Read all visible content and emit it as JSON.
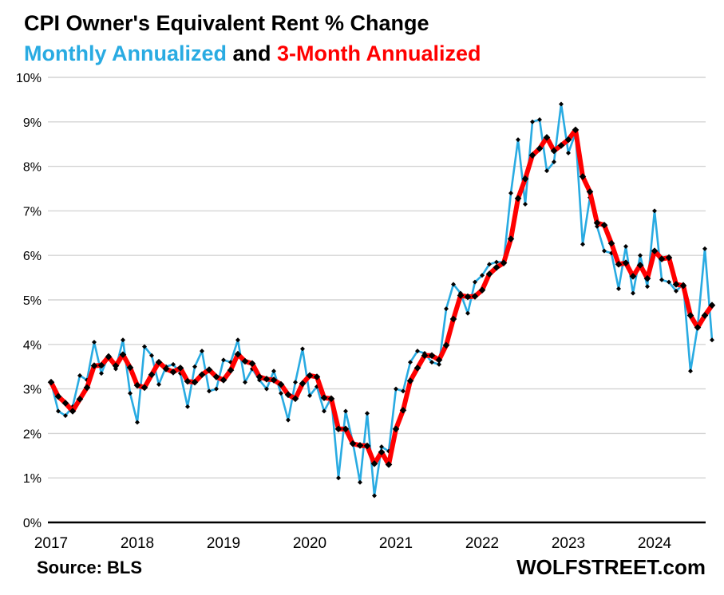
{
  "header": {
    "title": "CPI Owner's Equivalent Rent % Change",
    "subtitle_part1": "Monthly Annualized",
    "subtitle_conj": " and ",
    "subtitle_part2": "3-Month Annualized"
  },
  "footer": {
    "source": "Source: BLS",
    "branding": "WOLFSTREET.com"
  },
  "colors": {
    "monthly_blue": "#29abe2",
    "three_month_red": "#ff0000",
    "marker_black": "#000000",
    "gridline_gray": "#d4d4d4",
    "axis_black": "#000000",
    "text_black": "#000000"
  },
  "chart_data": {
    "type": "line",
    "title": "CPI Owner's Equivalent Rent % Change",
    "frequency": "monthly",
    "x_range_years": [
      "2017",
      "2024"
    ],
    "x_tick_labels": [
      "2017",
      "2018",
      "2019",
      "2020",
      "2021",
      "2022",
      "2023",
      "2024"
    ],
    "y_tick_labels": [
      "0%",
      "1%",
      "2%",
      "3%",
      "4%",
      "5%",
      "6%",
      "7%",
      "8%",
      "9%",
      "10%"
    ],
    "ylim": [
      0,
      10
    ],
    "grid": "horizontal",
    "legend_position": "subtitle",
    "series": [
      {
        "name": "Monthly Annualized",
        "color": "#29abe2",
        "values": [
          3.15,
          2.5,
          2.4,
          2.6,
          3.3,
          3.2,
          4.05,
          3.35,
          3.75,
          3.45,
          4.1,
          2.9,
          2.25,
          3.95,
          3.75,
          3.1,
          3.5,
          3.55,
          3.35,
          2.6,
          3.5,
          3.85,
          2.95,
          3.0,
          3.65,
          3.6,
          4.1,
          3.15,
          3.45,
          3.2,
          3.0,
          3.4,
          2.9,
          2.3,
          3.15,
          3.9,
          2.85,
          3.05,
          2.5,
          2.8,
          1.0,
          2.5,
          1.8,
          0.9,
          2.45,
          0.6,
          1.7,
          1.6,
          3.0,
          2.95,
          3.6,
          3.85,
          3.8,
          3.6,
          3.55,
          4.8,
          5.35,
          5.15,
          4.7,
          5.4,
          5.55,
          5.8,
          5.85,
          5.85,
          7.4,
          8.6,
          7.15,
          9.0,
          9.05,
          7.9,
          8.1,
          9.4,
          8.3,
          8.75,
          6.25,
          7.3,
          6.65,
          6.1,
          6.05,
          5.25,
          6.2,
          5.15,
          6.0,
          5.3,
          7.0,
          5.45,
          5.4,
          5.2,
          5.35,
          3.4,
          4.4,
          6.15,
          4.1
        ]
      },
      {
        "name": "3-Month Annualized",
        "color": "#ff0000",
        "values": [
          3.15,
          2.83,
          2.68,
          2.5,
          2.77,
          3.03,
          3.52,
          3.53,
          3.72,
          3.52,
          3.77,
          3.48,
          3.08,
          3.03,
          3.32,
          3.6,
          3.45,
          3.38,
          3.47,
          3.17,
          3.15,
          3.32,
          3.43,
          3.27,
          3.2,
          3.42,
          3.78,
          3.62,
          3.57,
          3.27,
          3.22,
          3.2,
          3.1,
          2.87,
          2.78,
          3.12,
          3.3,
          3.27,
          2.8,
          2.78,
          2.1,
          2.1,
          1.77,
          1.73,
          1.72,
          1.32,
          1.58,
          1.3,
          2.1,
          2.52,
          3.18,
          3.47,
          3.75,
          3.75,
          3.65,
          3.98,
          4.57,
          5.1,
          5.07,
          5.08,
          5.22,
          5.58,
          5.73,
          5.83,
          6.37,
          7.28,
          7.72,
          8.25,
          8.4,
          8.65,
          8.35,
          8.47,
          8.6,
          8.82,
          7.77,
          7.43,
          6.73,
          6.68,
          6.27,
          5.8,
          5.83,
          5.53,
          5.78,
          5.48,
          6.1,
          5.92,
          5.95,
          5.35,
          5.32,
          4.65,
          4.38,
          4.65,
          4.88
        ]
      }
    ]
  }
}
